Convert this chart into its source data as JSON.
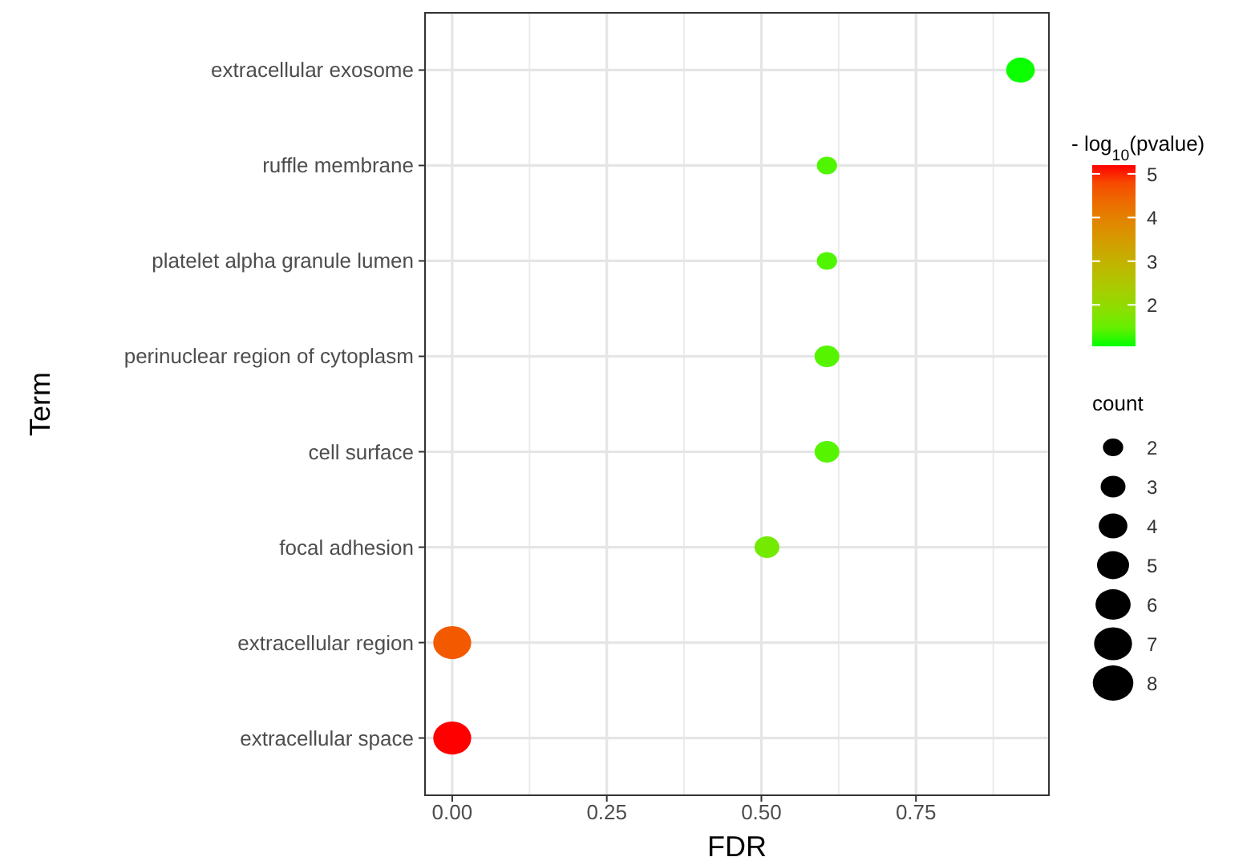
{
  "chart_data": {
    "type": "bubble",
    "orientation": "horizontal",
    "xlabel": "FDR",
    "ylabel": "Term",
    "clabel": "- log$_{10}$(pvalue)",
    "legend_title": "count",
    "categories": [
      "extracellular exosome",
      "ruffle membrane",
      "platelet alpha granule lumen",
      "perinuclear region of cytoplasm",
      "cell surface",
      "focal adhesion",
      "extracellular region",
      "extracellular space"
    ],
    "values": [
      0.919,
      0.606,
      0.606,
      0.606,
      0.606,
      0.509,
      0,
      0
    ],
    "cvalues": [
      1.06,
      1.3,
      1.3,
      1.35,
      1.35,
      1.6,
      4.6,
      5.2
    ],
    "sizes": [
      4,
      2,
      2,
      3,
      3,
      3,
      7,
      7
    ],
    "size_legend": [
      2,
      3,
      4,
      5,
      6,
      7,
      8
    ],
    "clim": [
      1.05,
      5.2
    ],
    "cticks": [
      2,
      3,
      4,
      5
    ],
    "xlim": [
      -0.044,
      0.965
    ],
    "xticks": [
      {
        "value": 0,
        "label": "0.00"
      },
      {
        "value": 0.25,
        "label": "0.25"
      },
      {
        "value": 0.5,
        "label": "0.50"
      },
      {
        "value": 0.75,
        "label": "0.75"
      }
    ],
    "grid": true
  }
}
